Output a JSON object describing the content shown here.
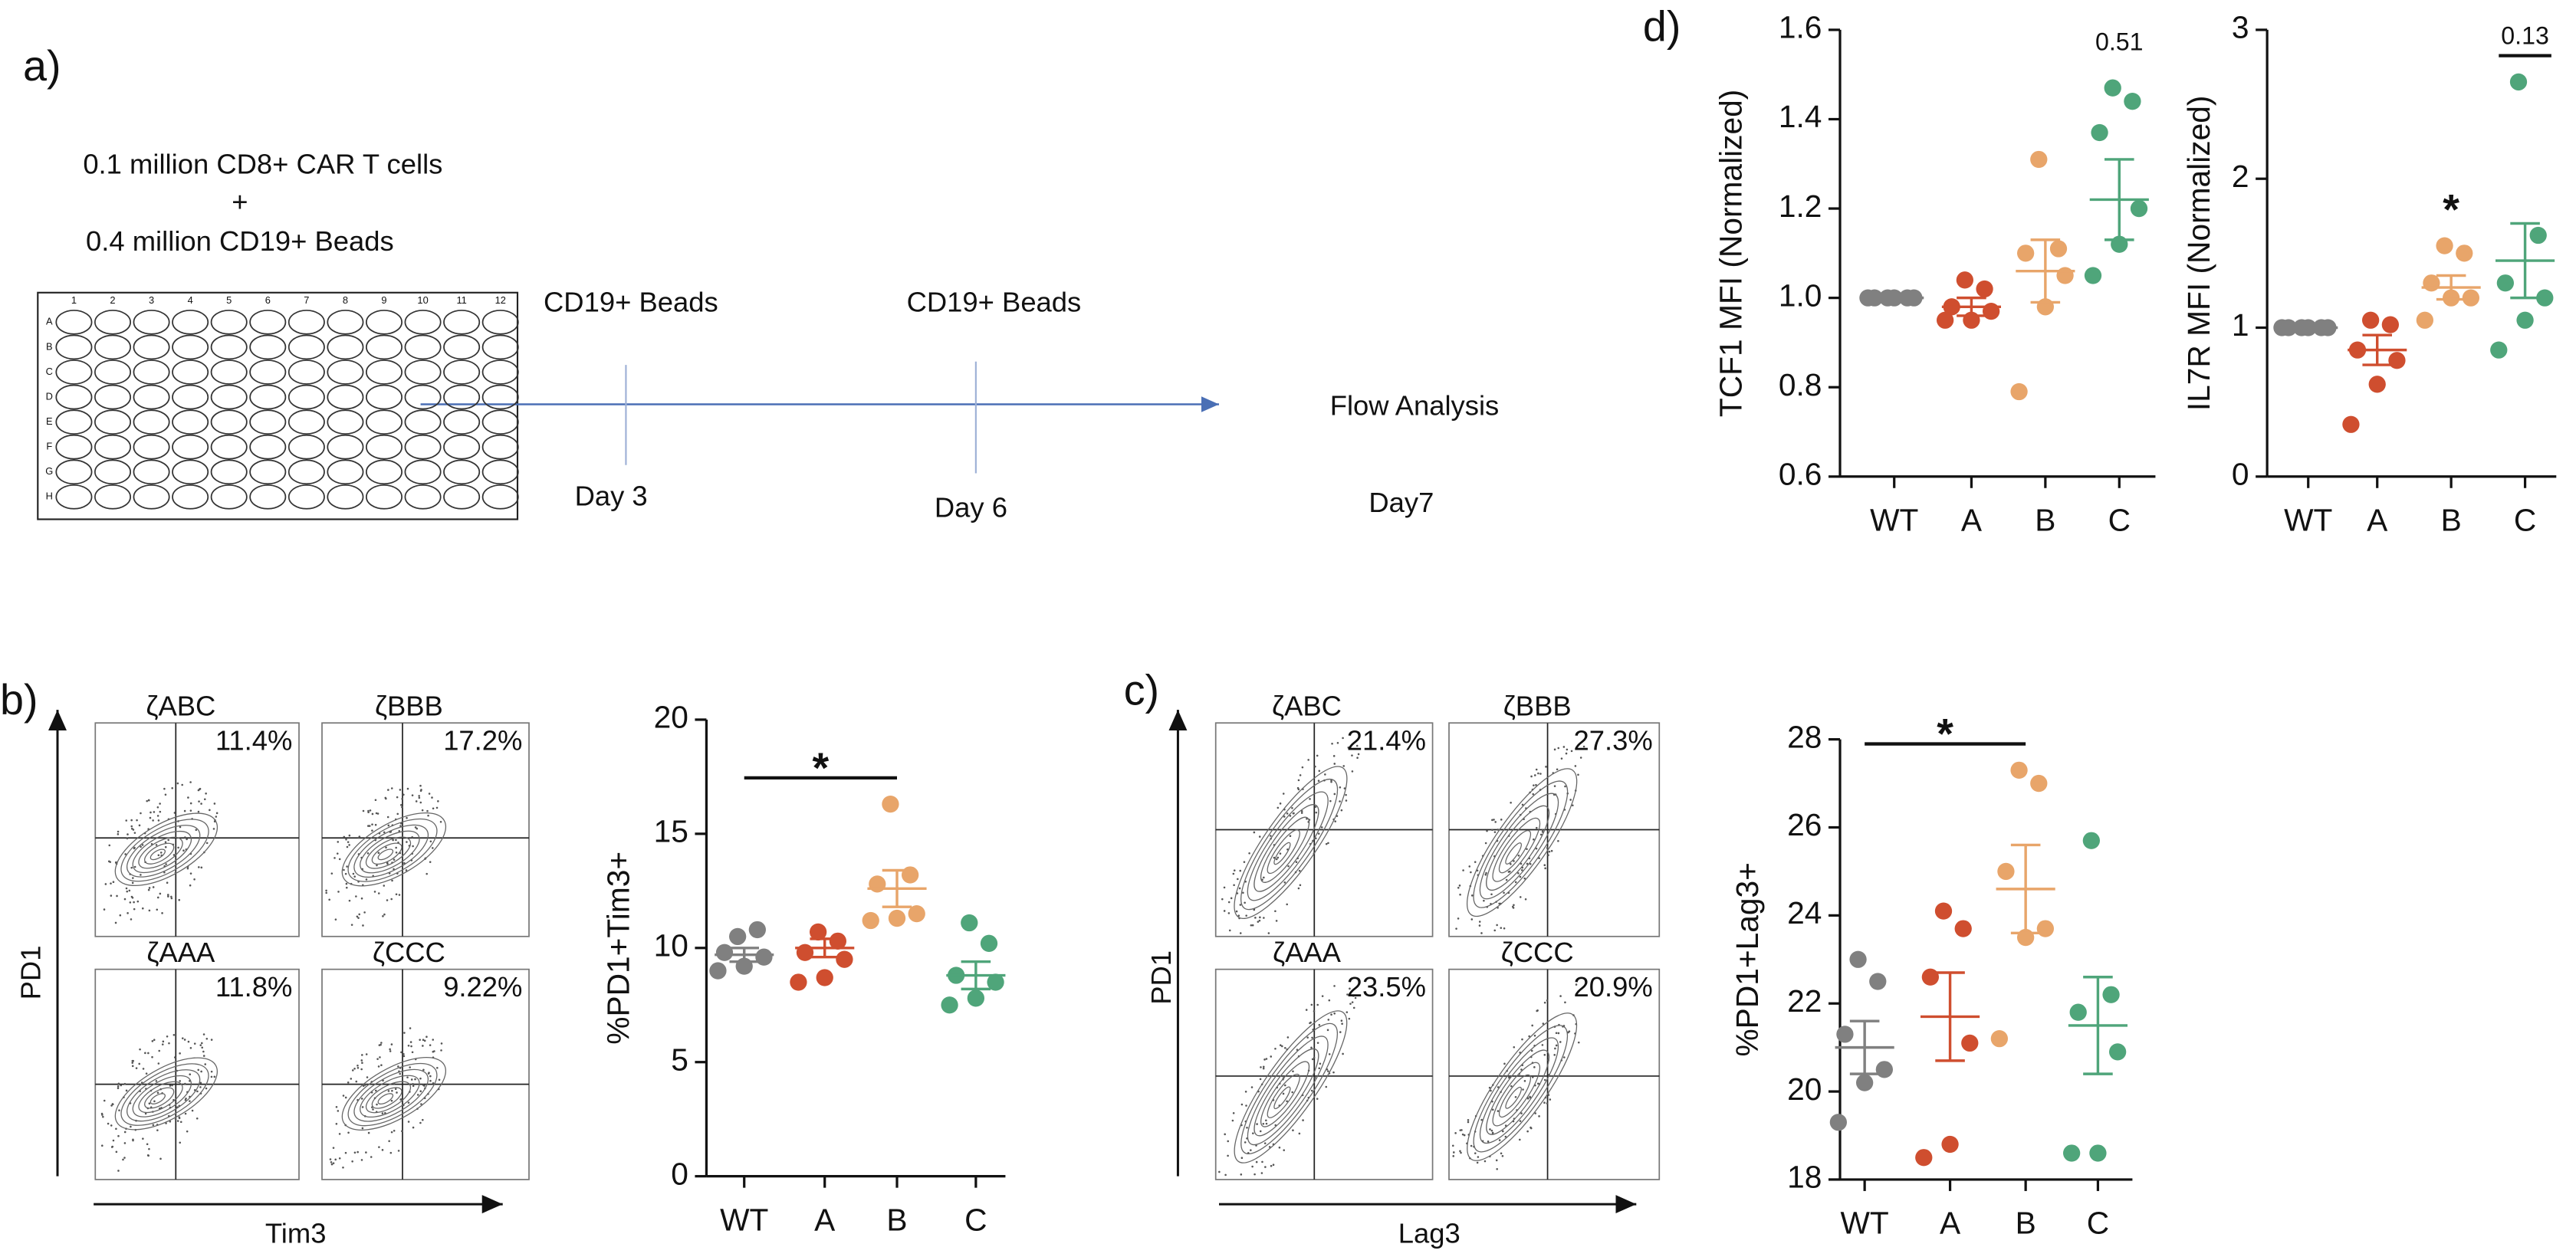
{
  "panels": {
    "a": "a)",
    "b": "b)",
    "c": "c)",
    "d": "d)"
  },
  "protocol": {
    "seeding": [
      "0.1 million CD8+ CAR T cells",
      "+",
      "0.4 million CD19+ Beads"
    ],
    "plate_rows": [
      "A",
      "B",
      "C",
      "D",
      "E",
      "F",
      "G",
      "H"
    ],
    "plate_cols": [
      "1",
      "2",
      "3",
      "4",
      "5",
      "6",
      "7",
      "8",
      "9",
      "10",
      "11",
      "12"
    ],
    "events": [
      {
        "label": "CD19+ Beads",
        "day": "Day 3"
      },
      {
        "label": "CD19+ Beads",
        "day": "Day 6"
      },
      {
        "label": "Flow Analysis",
        "day": "Day7"
      }
    ]
  },
  "flow_b": {
    "y_axis": "PD1",
    "x_axis": "Tim3",
    "plots": [
      {
        "name": "ζABC",
        "percent": "11.4%"
      },
      {
        "name": "ζBBB",
        "percent": "17.2%"
      },
      {
        "name": "ζAAA",
        "percent": "11.8%"
      },
      {
        "name": "ζCCC",
        "percent": "9.22%"
      }
    ]
  },
  "flow_c": {
    "y_axis": "PD1",
    "x_axis": "Lag3",
    "plots": [
      {
        "name": "ζABC",
        "percent": "21.4%"
      },
      {
        "name": "ζBBB",
        "percent": "27.3%"
      },
      {
        "name": "ζAAA",
        "percent": "23.5%"
      },
      {
        "name": "ζCCC",
        "percent": "20.9%"
      }
    ]
  },
  "chart_data": [
    {
      "type": "dot",
      "ylabel": "%PD1+Tim3+",
      "categories": [
        "WT",
        "A",
        "B",
        "C"
      ],
      "colors": [
        "#808080",
        "#cf4e2f",
        "#e8a56a",
        "#4fa57a"
      ],
      "points": [
        [
          10.5,
          10.8,
          9.8,
          9.6,
          9.2,
          9.0
        ],
        [
          10.7,
          10.3,
          9.8,
          9.5,
          8.7,
          8.5
        ],
        [
          16.3,
          13.2,
          12.8,
          11.5,
          11.3,
          11.2
        ],
        [
          11.1,
          10.2,
          8.8,
          8.5,
          7.8,
          7.5
        ]
      ],
      "means": [
        9.7,
        10.0,
        12.6,
        8.8
      ],
      "errors": [
        0.3,
        0.4,
        0.8,
        0.6
      ],
      "ylim": [
        0,
        20
      ],
      "yticks": [
        0,
        5,
        10,
        15,
        20
      ],
      "annotations": [
        {
          "text": "*",
          "from": 0,
          "to": 2,
          "line": true
        }
      ]
    },
    {
      "type": "dot",
      "ylabel": "%PD1+Lag3+",
      "categories": [
        "WT",
        "A",
        "B",
        "C"
      ],
      "colors": [
        "#808080",
        "#cf4e2f",
        "#e8a56a",
        "#4fa57a"
      ],
      "points": [
        [
          23.0,
          22.5,
          21.3,
          20.5,
          20.2,
          19.3
        ],
        [
          24.1,
          23.7,
          22.6,
          21.1,
          18.8,
          18.5
        ],
        [
          27.3,
          27.0,
          25.0,
          23.7,
          23.5,
          21.2
        ],
        [
          25.7,
          22.2,
          21.8,
          20.9,
          18.6,
          18.6
        ]
      ],
      "means": [
        21.0,
        21.7,
        24.6,
        21.5
      ],
      "errors": [
        0.6,
        1.0,
        1.0,
        1.1
      ],
      "ylim": [
        18,
        28
      ],
      "yticks": [
        18,
        20,
        22,
        24,
        26,
        28
      ],
      "annotations": [
        {
          "text": "*",
          "from": 0,
          "to": 2,
          "line": true
        }
      ]
    },
    {
      "type": "dot",
      "ylabel": "TCF1 MFI (Normalized)",
      "categories": [
        "WT",
        "A",
        "B",
        "C"
      ],
      "colors": [
        "#808080",
        "#cf4e2f",
        "#e8a56a",
        "#4fa57a"
      ],
      "points": [
        [
          1,
          1,
          1,
          1,
          1,
          1
        ],
        [
          1.04,
          1.02,
          0.98,
          0.97,
          0.95,
          0.95
        ],
        [
          1.31,
          1.11,
          1.1,
          1.05,
          0.98,
          0.79
        ],
        [
          1.47,
          1.44,
          1.37,
          1.2,
          1.12,
          1.05
        ]
      ],
      "means": [
        1,
        0.98,
        1.06,
        1.22
      ],
      "errors": [
        0,
        0.02,
        0.07,
        0.09
      ],
      "ylim": [
        0.6,
        1.6
      ],
      "yticks": [
        0.6,
        0.8,
        {
          "value": 1,
          "label": "1.0"
        },
        1.2,
        1.4,
        1.6
      ],
      "annotations": [
        {
          "text": "0.51",
          "from": 3,
          "to": 3,
          "line": false
        }
      ]
    },
    {
      "type": "dot",
      "ylabel": "IL7R MFI (Normalized)",
      "categories": [
        "WT",
        "A",
        "B",
        "C"
      ],
      "colors": [
        "#808080",
        "#cf4e2f",
        "#e8a56a",
        "#4fa57a"
      ],
      "points": [
        [
          1,
          1,
          1,
          1,
          1,
          1
        ],
        [
          1.05,
          1.02,
          0.85,
          0.78,
          0.62,
          0.35
        ],
        [
          1.55,
          1.5,
          1.3,
          1.2,
          1.2,
          1.05
        ],
        [
          2.65,
          1.62,
          1.3,
          1.2,
          1.05,
          0.85
        ]
      ],
      "means": [
        1,
        0.85,
        1.27,
        1.45
      ],
      "errors": [
        0,
        0.1,
        0.08,
        0.25
      ],
      "ylim": [
        0,
        3
      ],
      "yticks": [
        0,
        1,
        2,
        3
      ],
      "annotations": [
        {
          "text": "*",
          "from": 2,
          "to": 2,
          "line": false
        },
        {
          "text": "0.13",
          "from": 3,
          "to": 3,
          "line": true
        }
      ]
    }
  ]
}
